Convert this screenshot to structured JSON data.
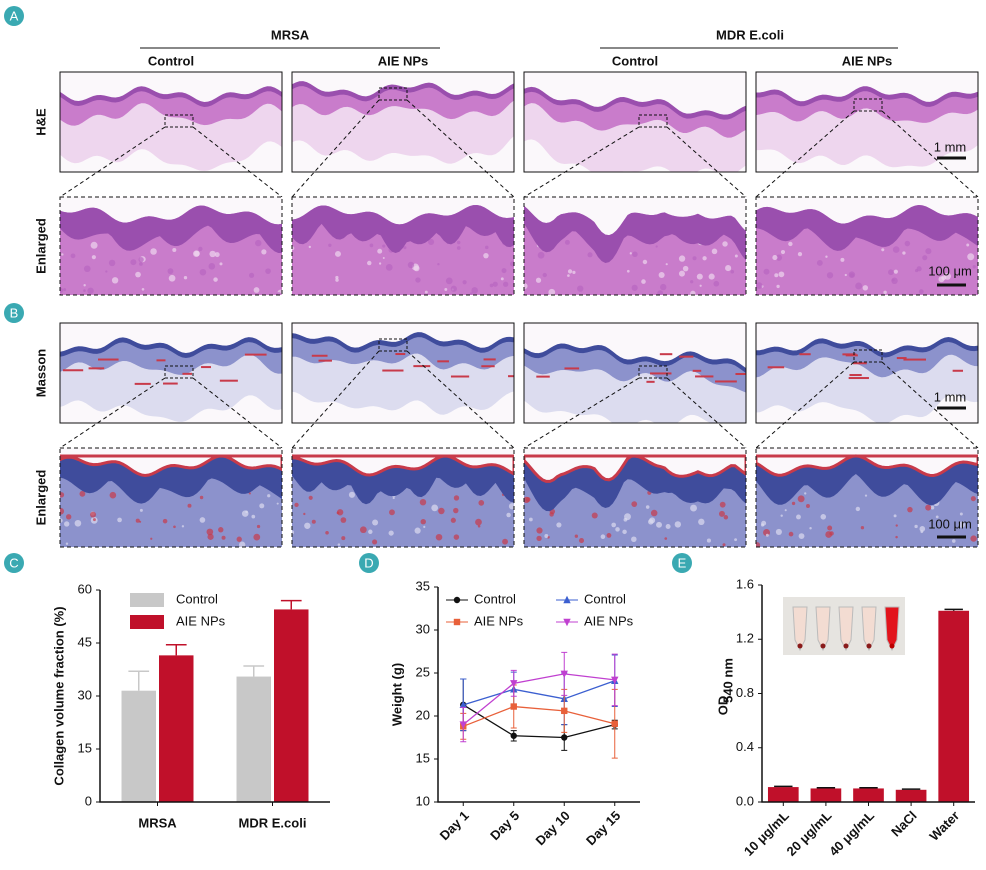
{
  "panel_labels": [
    "A",
    "B",
    "C",
    "D",
    "E"
  ],
  "histology": {
    "groups": [
      "MRSA",
      "MDR E.coli"
    ],
    "columns": [
      "Control",
      "AIE NPs",
      "Control",
      "AIE NPs"
    ],
    "rows": [
      "H&E",
      "Enlarged",
      "Masson",
      "Enlarged"
    ],
    "scale_bars": [
      "1 mm",
      "100 μm",
      "1 mm",
      "100 μm"
    ]
  },
  "chart_data": [
    {
      "type": "bar",
      "y_label": "Collagen volume fraction (%)",
      "categories": [
        "MRSA",
        "MDR E.coli"
      ],
      "series": [
        {
          "name": "Control",
          "color": "#c8c8c8",
          "values": [
            31.5,
            35.5
          ],
          "errors": [
            5.5,
            3
          ]
        },
        {
          "name": "AIE NPs",
          "color": "#c0102a",
          "values": [
            41.5,
            54.5
          ],
          "errors": [
            3,
            2.5
          ]
        }
      ],
      "ylim": [
        0,
        60
      ],
      "yticks": [
        0,
        15,
        30,
        45,
        60
      ]
    },
    {
      "type": "line",
      "y_label": "Weight (g)",
      "categories": [
        "Day 1",
        "Day 5",
        "Day 10",
        "Day 15"
      ],
      "series": [
        {
          "name": "Control",
          "color": "#111111",
          "marker": "circle",
          "values": [
            21.3,
            17.7,
            17.5,
            19
          ],
          "errors": [
            3,
            0.6,
            1.5,
            0.5
          ]
        },
        {
          "name": "Control",
          "color": "#3b5fd0",
          "marker": "triangle",
          "values": [
            21.3,
            23.1,
            22,
            24.1
          ],
          "errors": [
            3,
            2,
            3,
            3
          ]
        },
        {
          "name": "AIE NPs",
          "color": "#e8603a",
          "marker": "square",
          "values": [
            18.8,
            21.1,
            20.6,
            19.1
          ],
          "errors": [
            1.5,
            2.5,
            2.5,
            4
          ]
        },
        {
          "name": "AIE NPs",
          "color": "#c040d0",
          "marker": "triangle-down",
          "values": [
            19,
            23.8,
            24.9,
            24.2
          ],
          "errors": [
            2,
            1.5,
            2.5,
            3
          ]
        }
      ],
      "ylim": [
        10,
        35
      ],
      "yticks": [
        10,
        15,
        20,
        25,
        30,
        35
      ]
    },
    {
      "type": "bar",
      "y_label": "OD",
      "y_label_sub": "540 nm",
      "categories": [
        "10 μg/mL",
        "20 μg/mL",
        "40 μg/mL",
        "NaCl",
        "Water"
      ],
      "series": [
        {
          "color": "#c0102a",
          "values": [
            0.11,
            0.1,
            0.1,
            0.09,
            1.41
          ],
          "errors": [
            0.005,
            0.005,
            0.005,
            0.005,
            0.01
          ]
        }
      ],
      "ylim": [
        0,
        1.6
      ],
      "yticks": [
        {
          "value": 0,
          "label": "0.0"
        },
        {
          "value": 0.4,
          "label": "0.4"
        },
        {
          "value": 0.8,
          "label": "0.8"
        },
        {
          "value": 1.2,
          "label": "1.2"
        },
        {
          "value": 1.6,
          "label": "1.6"
        }
      ]
    }
  ]
}
